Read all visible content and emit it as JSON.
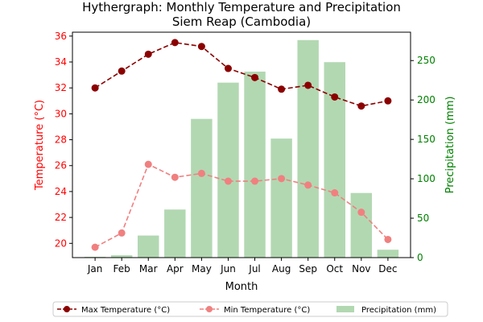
{
  "chart_data": {
    "type": "bar+line",
    "title_line1": "Hythergraph: Monthly Temperature and Precipitation",
    "title_line2": "Siem Reap (Cambodia)",
    "xlabel": "Month",
    "ylabel_left": "Temperature (°C)",
    "ylabel_right": "Precipitation (mm)",
    "categories": [
      "Jan",
      "Feb",
      "Mar",
      "Apr",
      "May",
      "Jun",
      "Jul",
      "Aug",
      "Sep",
      "Oct",
      "Nov",
      "Dec"
    ],
    "ylim_left": [
      18.9,
      36.3
    ],
    "ylim_right": [
      0,
      286
    ],
    "yticks_left": [
      20,
      22,
      24,
      26,
      28,
      30,
      32,
      34,
      36
    ],
    "yticks_right": [
      0,
      50,
      100,
      150,
      200,
      250
    ],
    "series": [
      {
        "name": "Max Temperature (°C)",
        "axis": "left",
        "kind": "line",
        "color": "#8b0000",
        "values": [
          32.0,
          33.3,
          34.6,
          35.5,
          35.2,
          33.5,
          32.8,
          31.9,
          32.2,
          31.3,
          30.6,
          31.0
        ]
      },
      {
        "name": "Min Temperature (°C)",
        "axis": "left",
        "kind": "line",
        "color": "#f08080",
        "values": [
          19.7,
          20.8,
          26.1,
          25.1,
          25.4,
          24.8,
          24.8,
          25.0,
          24.5,
          23.9,
          22.4,
          20.3
        ]
      },
      {
        "name": "Precipitation (mm)",
        "axis": "right",
        "kind": "bar",
        "color": "#b2d8b2",
        "values": [
          1,
          3,
          28,
          61,
          176,
          222,
          236,
          151,
          276,
          248,
          82,
          10
        ]
      }
    ],
    "legend_position": "bottom",
    "colors": {
      "left_axis": "#ff0000",
      "right_axis": "#008000"
    }
  }
}
